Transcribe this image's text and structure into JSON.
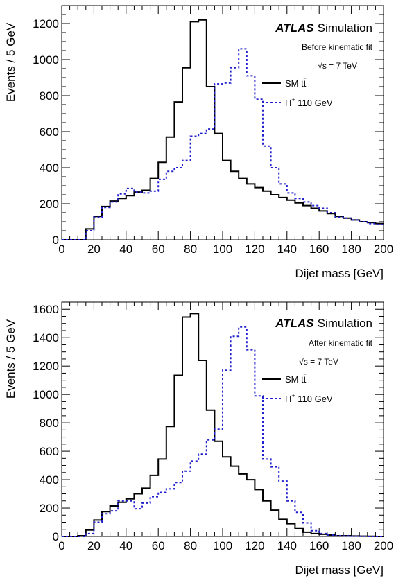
{
  "chart_data": [
    {
      "type": "histogram",
      "xlabel": "Dijet mass [GeV]",
      "ylabel": "Events / 5 GeV",
      "xlim": [
        0,
        200
      ],
      "ylim": [
        0,
        1300
      ],
      "xticks": [
        "0",
        "20",
        "40",
        "60",
        "80",
        "100",
        "120",
        "140",
        "160",
        "180",
        "200"
      ],
      "yticks": [
        "0",
        "200",
        "400",
        "600",
        "800",
        "1000",
        "1200"
      ],
      "yticks_values": [
        0,
        200,
        400,
        600,
        800,
        1000,
        1200
      ],
      "bin_width": 5,
      "experiment": "ATLAS",
      "experiment_label": "Simulation",
      "annotation": "Before kinematic fit",
      "energy_sqrt": "√s",
      "energy_rest": " = 7 TeV",
      "series": [
        {
          "name_main": "SM t",
          "name_bar": "t",
          "style": "solid",
          "color": "#000000",
          "values": [
            0,
            0,
            0,
            60,
            130,
            185,
            215,
            230,
            245,
            265,
            275,
            340,
            430,
            570,
            765,
            955,
            1210,
            1220,
            850,
            590,
            440,
            380,
            340,
            310,
            290,
            270,
            250,
            235,
            220,
            205,
            190,
            175,
            160,
            145,
            130,
            120,
            110,
            100,
            95,
            90
          ]
        },
        {
          "name_main": "H",
          "name_sup": "+",
          "name_rest": " 110 GeV",
          "style": "dashed",
          "color": "#2020cc",
          "values": [
            0,
            0,
            0,
            50,
            125,
            180,
            210,
            255,
            285,
            265,
            260,
            270,
            335,
            380,
            400,
            440,
            575,
            590,
            615,
            865,
            870,
            955,
            1060,
            910,
            780,
            520,
            400,
            310,
            260,
            230,
            210,
            190,
            175,
            150,
            125,
            120,
            110,
            100,
            90,
            85
          ]
        }
      ]
    },
    {
      "type": "histogram",
      "xlabel": "Dijet mass [GeV]",
      "ylabel": "Events / 5 GeV",
      "xlim": [
        0,
        200
      ],
      "ylim": [
        0,
        1650
      ],
      "xticks": [
        "0",
        "20",
        "40",
        "60",
        "80",
        "100",
        "120",
        "140",
        "160",
        "180",
        "200"
      ],
      "yticks": [
        "0",
        "200",
        "400",
        "600",
        "800",
        "1000",
        "1200",
        "1400",
        "1600"
      ],
      "yticks_values": [
        0,
        200,
        400,
        600,
        800,
        1000,
        1200,
        1400,
        1600
      ],
      "bin_width": 5,
      "experiment": "ATLAS",
      "experiment_label": "Simulation",
      "annotation": "After kinematic fit",
      "energy_sqrt": "√s",
      "energy_rest": " = 7 TeV",
      "series": [
        {
          "name_main": "SM t",
          "name_bar": "t",
          "style": "solid",
          "color": "#000000",
          "values": [
            0,
            0,
            5,
            45,
            115,
            175,
            215,
            240,
            265,
            300,
            340,
            430,
            545,
            775,
            1135,
            1545,
            1570,
            1240,
            890,
            670,
            560,
            495,
            440,
            400,
            330,
            250,
            185,
            120,
            90,
            55,
            30,
            20,
            15,
            10,
            5,
            5,
            3,
            2,
            1,
            0
          ]
        },
        {
          "name_main": "H",
          "name_sup": "+",
          "name_rest": " 110 GeV",
          "style": "dashed",
          "color": "#2020cc",
          "values": [
            0,
            0,
            0,
            20,
            100,
            160,
            180,
            250,
            250,
            195,
            235,
            280,
            310,
            335,
            380,
            460,
            530,
            580,
            680,
            755,
            1170,
            1410,
            1475,
            1315,
            990,
            545,
            490,
            390,
            250,
            170,
            95,
            40,
            20,
            10,
            5,
            3,
            2,
            1,
            0,
            0
          ]
        }
      ]
    }
  ]
}
